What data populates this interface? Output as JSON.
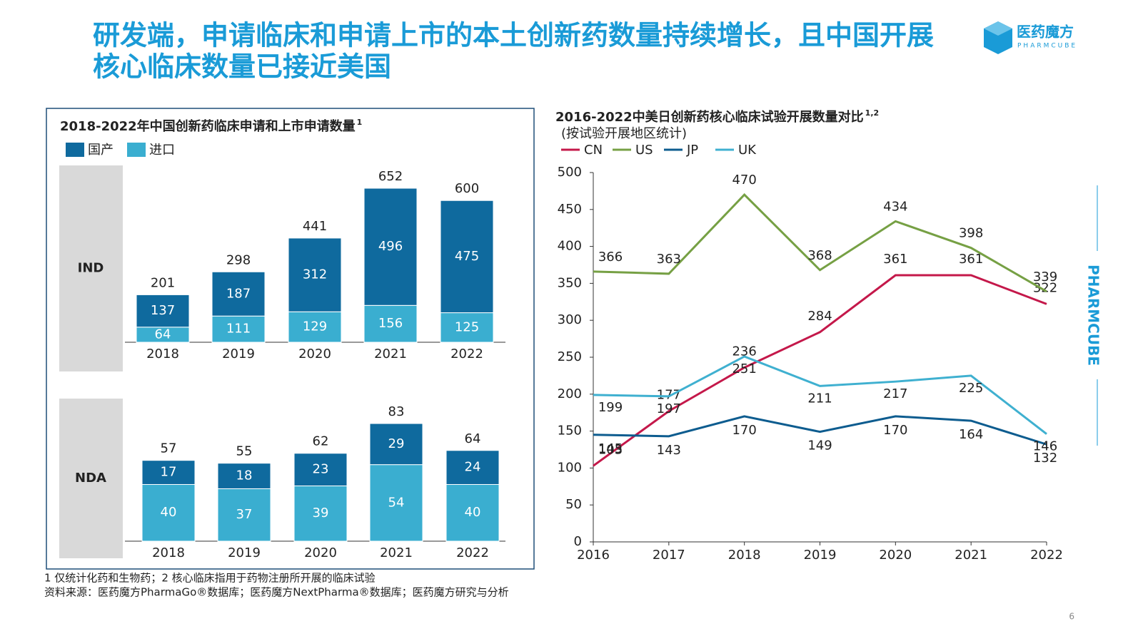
{
  "header": {
    "title_lines": [
      "研发端，申请临床和申请上市的本土创新药数量持续增长，且中国开展",
      "核心临床数量已接近美国"
    ],
    "logo_name": "医药魔方",
    "logo_sub": "PHARMCUBE"
  },
  "chart_data": [
    {
      "type": "stacked_bar",
      "title": "2018-2022年中国创新药临床申请和上市申请数量",
      "title_note": "1",
      "categories": [
        "2018",
        "2019",
        "2020",
        "2021",
        "2022"
      ],
      "legend": [
        {
          "name": "国产",
          "color": "#0f6a9e"
        },
        {
          "name": "进口",
          "color": "#3aaed0"
        }
      ],
      "panels": [
        {
          "label": "IND",
          "series": [
            {
              "values": [
                137,
                187,
                312,
                496,
                475
              ]
            },
            {
              "values": [
                64,
                111,
                129,
                156,
                125
              ]
            }
          ],
          "totals": [
            201,
            298,
            441,
            652,
            600
          ]
        },
        {
          "label": "NDA",
          "series": [
            {
              "values": [
                17,
                18,
                23,
                29,
                24
              ]
            },
            {
              "values": [
                40,
                37,
                39,
                54,
                40
              ]
            }
          ],
          "totals": [
            57,
            55,
            62,
            83,
            64
          ]
        }
      ]
    },
    {
      "type": "line",
      "title": "2016-2022中美日创新药核心临床试验开展数量对比",
      "title_note": "1,2",
      "subtitle": "(按试验开展地区统计)",
      "x": [
        2016,
        2017,
        2018,
        2019,
        2020,
        2021,
        2022
      ],
      "xlim": [
        2016,
        2022
      ],
      "ylim": [
        0,
        500
      ],
      "yticks": [
        0,
        50,
        100,
        150,
        200,
        250,
        300,
        350,
        400,
        450,
        500
      ],
      "series": [
        {
          "name": "CN",
          "color": "#c4184a",
          "values": [
            103,
            177,
            236,
            284,
            361,
            361,
            322
          ]
        },
        {
          "name": "US",
          "color": "#76a044",
          "values": [
            366,
            363,
            470,
            368,
            434,
            398,
            339
          ]
        },
        {
          "name": "JP",
          "color": "#0d5c8f",
          "values": [
            145,
            143,
            170,
            149,
            170,
            164,
            132
          ]
        },
        {
          "name": "UK",
          "color": "#3fb0d0",
          "values": [
            199,
            197,
            251,
            211,
            217,
            225,
            146
          ]
        }
      ]
    }
  ],
  "footnotes": [
    "1 仅统计化药和生物药；2 核心临床指用于药物注册所开展的临床试验",
    "资料来源：医药魔方PharmaGo®数据库；医药魔方NextPharma®数据库；医药魔方研究与分析"
  ],
  "side_brand": "PHARMCUBE",
  "page_number": "6"
}
